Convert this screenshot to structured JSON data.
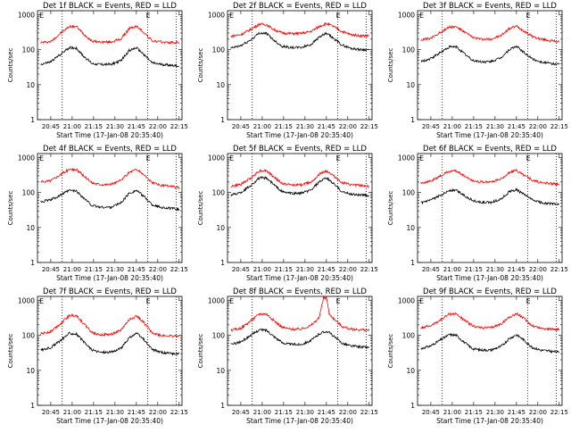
{
  "page": {
    "background": "#ffffff"
  },
  "colors": {
    "events": "#000000",
    "lld": "#ff0000",
    "axis": "#000000"
  },
  "shared": {
    "ylabel": "Counts/sec",
    "xlabel": "Start Time (17-Jan-08 20:35:40)",
    "x_ticks": [
      "20:45",
      "21:00",
      "21:15",
      "21:30",
      "21:45",
      "22:00",
      "22:15"
    ],
    "y_ticks": [
      "1",
      "10",
      "100",
      "1000"
    ],
    "corner_marker": "E",
    "y_scale": "log",
    "xlim": [
      "20:35:40",
      "22:17:00"
    ],
    "ylim": [
      1,
      1300
    ],
    "vlines": [
      "20:53:00",
      "21:53:00",
      "22:13:00"
    ]
  },
  "chart_data": [
    {
      "type": "line",
      "title": "Det 1f BLACK = Events, RED = LLD",
      "x": [
        "20:38",
        "20:45",
        "20:52",
        "20:58",
        "21:03",
        "21:08",
        "21:14",
        "21:20",
        "21:27",
        "21:34",
        "21:40",
        "21:45",
        "21:50",
        "21:56",
        "22:02",
        "22:09",
        "22:15"
      ],
      "series": [
        {
          "name": "LLD",
          "color": "#ff0000",
          "values": [
            160,
            170,
            300,
            460,
            460,
            280,
            175,
            165,
            165,
            200,
            400,
            470,
            320,
            180,
            165,
            160,
            160
          ]
        },
        {
          "name": "Events",
          "color": "#000000",
          "values": [
            38,
            45,
            75,
            115,
            110,
            65,
            40,
            38,
            38,
            48,
            95,
            112,
            75,
            42,
            38,
            36,
            34
          ]
        }
      ]
    },
    {
      "type": "line",
      "title": "Det 2f BLACK = Events, RED = LLD",
      "x": [
        "20:38",
        "20:45",
        "20:52",
        "20:58",
        "21:03",
        "21:08",
        "21:14",
        "21:20",
        "21:27",
        "21:34",
        "21:40",
        "21:45",
        "21:50",
        "21:56",
        "22:02",
        "22:09",
        "22:15"
      ],
      "series": [
        {
          "name": "LLD",
          "color": "#ff0000",
          "values": [
            240,
            270,
            380,
            540,
            520,
            380,
            300,
            290,
            290,
            330,
            460,
            560,
            460,
            330,
            270,
            250,
            250
          ]
        },
        {
          "name": "Events",
          "color": "#000000",
          "values": [
            110,
            130,
            190,
            300,
            290,
            190,
            125,
            115,
            115,
            140,
            230,
            290,
            210,
            135,
            110,
            100,
            100
          ]
        }
      ]
    },
    {
      "type": "line",
      "title": "Det 3f BLACK = Events, RED = LLD",
      "x": [
        "20:38",
        "20:45",
        "20:52",
        "20:58",
        "21:03",
        "21:08",
        "21:14",
        "21:20",
        "21:27",
        "21:34",
        "21:40",
        "21:45",
        "21:50",
        "21:56",
        "22:02",
        "22:09",
        "22:15"
      ],
      "series": [
        {
          "name": "LLD",
          "color": "#ff0000",
          "values": [
            190,
            210,
            320,
            450,
            450,
            330,
            230,
            200,
            200,
            250,
            400,
            470,
            350,
            240,
            200,
            180,
            170
          ]
        },
        {
          "name": "Events",
          "color": "#000000",
          "values": [
            45,
            55,
            85,
            120,
            120,
            80,
            50,
            45,
            45,
            58,
            100,
            125,
            85,
            55,
            45,
            40,
            38
          ]
        }
      ]
    },
    {
      "type": "line",
      "title": "Det 4f BLACK = Events, RED = LLD",
      "x": [
        "20:38",
        "20:45",
        "20:52",
        "20:58",
        "21:03",
        "21:08",
        "21:14",
        "21:20",
        "21:27",
        "21:34",
        "21:40",
        "21:45",
        "21:50",
        "21:56",
        "22:02",
        "22:09",
        "22:15"
      ],
      "series": [
        {
          "name": "LLD",
          "color": "#ff0000",
          "values": [
            200,
            220,
            330,
            460,
            450,
            300,
            190,
            170,
            170,
            220,
            380,
            460,
            330,
            190,
            160,
            150,
            140
          ]
        },
        {
          "name": "Events",
          "color": "#000000",
          "values": [
            55,
            62,
            85,
            115,
            110,
            70,
            42,
            38,
            38,
            50,
            95,
            115,
            80,
            45,
            38,
            35,
            33
          ]
        }
      ]
    },
    {
      "type": "line",
      "title": "Det 5f BLACK = Events, RED = LLD",
      "x": [
        "20:38",
        "20:45",
        "20:52",
        "20:58",
        "21:03",
        "21:08",
        "21:14",
        "21:20",
        "21:27",
        "21:34",
        "21:40",
        "21:45",
        "21:50",
        "21:56",
        "22:02",
        "22:09",
        "22:15"
      ],
      "series": [
        {
          "name": "LLD",
          "color": "#ff0000",
          "values": [
            150,
            170,
            260,
            420,
            420,
            280,
            180,
            165,
            165,
            200,
            330,
            420,
            300,
            190,
            165,
            160,
            150
          ]
        },
        {
          "name": "Events",
          "color": "#000000",
          "values": [
            85,
            100,
            160,
            260,
            260,
            170,
            105,
            95,
            95,
            115,
            200,
            260,
            180,
            105,
            90,
            85,
            82
          ]
        }
      ]
    },
    {
      "type": "line",
      "title": "Det 6f BLACK = Events, RED = LLD",
      "x": [
        "20:38",
        "20:45",
        "20:52",
        "20:58",
        "21:03",
        "21:08",
        "21:14",
        "21:20",
        "21:27",
        "21:34",
        "21:40",
        "21:45",
        "21:50",
        "21:56",
        "22:02",
        "22:09",
        "22:15"
      ],
      "series": [
        {
          "name": "LLD",
          "color": "#ff0000",
          "values": [
            190,
            210,
            300,
            410,
            410,
            310,
            220,
            200,
            200,
            240,
            370,
            430,
            320,
            230,
            190,
            180,
            170
          ]
        },
        {
          "name": "Events",
          "color": "#000000",
          "values": [
            50,
            60,
            85,
            115,
            115,
            85,
            60,
            52,
            52,
            65,
            105,
            120,
            90,
            62,
            52,
            48,
            46
          ]
        }
      ]
    },
    {
      "type": "line",
      "title": "Det 7f BLACK = Events, RED = LLD",
      "x": [
        "20:38",
        "20:45",
        "20:52",
        "20:58",
        "21:03",
        "21:08",
        "21:14",
        "21:20",
        "21:27",
        "21:34",
        "21:40",
        "21:45",
        "21:50",
        "21:56",
        "22:02",
        "22:09",
        "22:15"
      ],
      "series": [
        {
          "name": "LLD",
          "color": "#ff0000",
          "values": [
            110,
            130,
            220,
            370,
            370,
            220,
            120,
            105,
            105,
            140,
            280,
            360,
            240,
            120,
            100,
            95,
            95
          ]
        },
        {
          "name": "Events",
          "color": "#000000",
          "values": [
            38,
            45,
            72,
            115,
            110,
            65,
            38,
            33,
            33,
            42,
            85,
            115,
            78,
            40,
            33,
            30,
            30
          ]
        }
      ]
    },
    {
      "type": "line",
      "title": "Det 8f BLACK = Events, RED = LLD",
      "x": [
        "20:38",
        "20:45",
        "20:52",
        "20:58",
        "21:03",
        "21:08",
        "21:14",
        "21:20",
        "21:27",
        "21:34",
        "21:40",
        "21:43",
        "21:45",
        "21:47",
        "21:50",
        "21:56",
        "22:02",
        "22:09",
        "22:15"
      ],
      "series": [
        {
          "name": "LLD",
          "color": "#ff0000",
          "values": [
            140,
            160,
            260,
            410,
            410,
            270,
            170,
            150,
            150,
            190,
            320,
            1200,
            1200,
            420,
            300,
            180,
            150,
            145,
            140
          ]
        },
        {
          "name": "Events",
          "color": "#000000",
          "values": [
            55,
            65,
            100,
            145,
            140,
            95,
            62,
            55,
            55,
            70,
            110,
            125,
            130,
            120,
            95,
            60,
            50,
            47,
            45
          ]
        }
      ]
    },
    {
      "type": "line",
      "title": "Det 9f BLACK = Events, RED = LLD",
      "x": [
        "20:38",
        "20:45",
        "20:52",
        "20:58",
        "21:03",
        "21:08",
        "21:14",
        "21:20",
        "21:27",
        "21:34",
        "21:40",
        "21:45",
        "21:50",
        "21:56",
        "22:02",
        "22:09",
        "22:15"
      ],
      "series": [
        {
          "name": "LLD",
          "color": "#ff0000",
          "values": [
            160,
            190,
            280,
            410,
            410,
            280,
            190,
            165,
            165,
            210,
            330,
            420,
            310,
            190,
            160,
            150,
            150
          ]
        },
        {
          "name": "Events",
          "color": "#000000",
          "values": [
            42,
            50,
            75,
            105,
            100,
            65,
            42,
            38,
            38,
            48,
            80,
            105,
            75,
            45,
            38,
            35,
            33
          ]
        }
      ]
    }
  ]
}
